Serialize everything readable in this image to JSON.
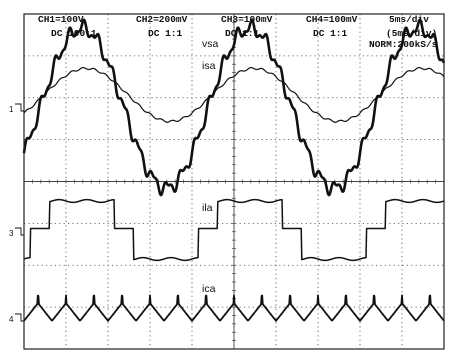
{
  "header": {
    "ch1": "CH1=100V",
    "ch1_cpl": "DC  100:1",
    "ch2": "CH2=200mV",
    "ch2_cpl": "DC  1:1",
    "ch3": "CH3=100mV",
    "ch3_cpl": "DC  1:1",
    "ch4": "CH4=100mV",
    "ch4_cpl": "DC  1:1",
    "timebase": "5ms/div",
    "timebase_zoom": "(5ms/div)",
    "mode": "NORM:200kS/s"
  },
  "chart_data": {
    "type": "line",
    "title": "",
    "xlabel": "",
    "ylabel": "",
    "grid": true,
    "xlim": [
      0,
      50
    ],
    "x_unit": "ms",
    "x_divisions": 10,
    "y_divisions": 8,
    "fundamental_period_ms": 20,
    "series": [
      {
        "name": "vsa",
        "channel_marker": "1",
        "x": [
          0,
          5,
          10,
          15,
          20,
          25,
          30,
          35,
          40,
          45,
          50
        ],
        "y_div": [
          0,
          2.7,
          0,
          -2.7,
          0,
          2.7,
          0,
          -2.7,
          0,
          2.7,
          0
        ]
      },
      {
        "name": "isa",
        "channel_marker": "1",
        "x": [
          0,
          5,
          10,
          15,
          20,
          25,
          30,
          35,
          40,
          45,
          50
        ],
        "y_div": [
          0.4,
          1.3,
          0.3,
          -0.9,
          0.4,
          1.3,
          0.3,
          -0.9,
          0.4,
          1.3,
          0.3
        ]
      },
      {
        "name": "ila",
        "channel_marker": "3",
        "x": [
          0,
          10,
          16,
          20,
          26,
          30,
          36,
          40,
          46,
          50
        ],
        "y_div": [
          0.8,
          0,
          -0.8,
          0,
          0.8,
          0,
          -0.8,
          0,
          0.8,
          0
        ]
      },
      {
        "name": "ica",
        "channel_marker": "4",
        "x": [
          0,
          2.5,
          5,
          7.5,
          10,
          12.5,
          15,
          17.5,
          20
        ],
        "y_div": [
          0.3,
          -0.5,
          0.4,
          -0.5,
          0.3,
          -0.5,
          0.4,
          -0.5,
          0.3
        ]
      }
    ]
  }
}
